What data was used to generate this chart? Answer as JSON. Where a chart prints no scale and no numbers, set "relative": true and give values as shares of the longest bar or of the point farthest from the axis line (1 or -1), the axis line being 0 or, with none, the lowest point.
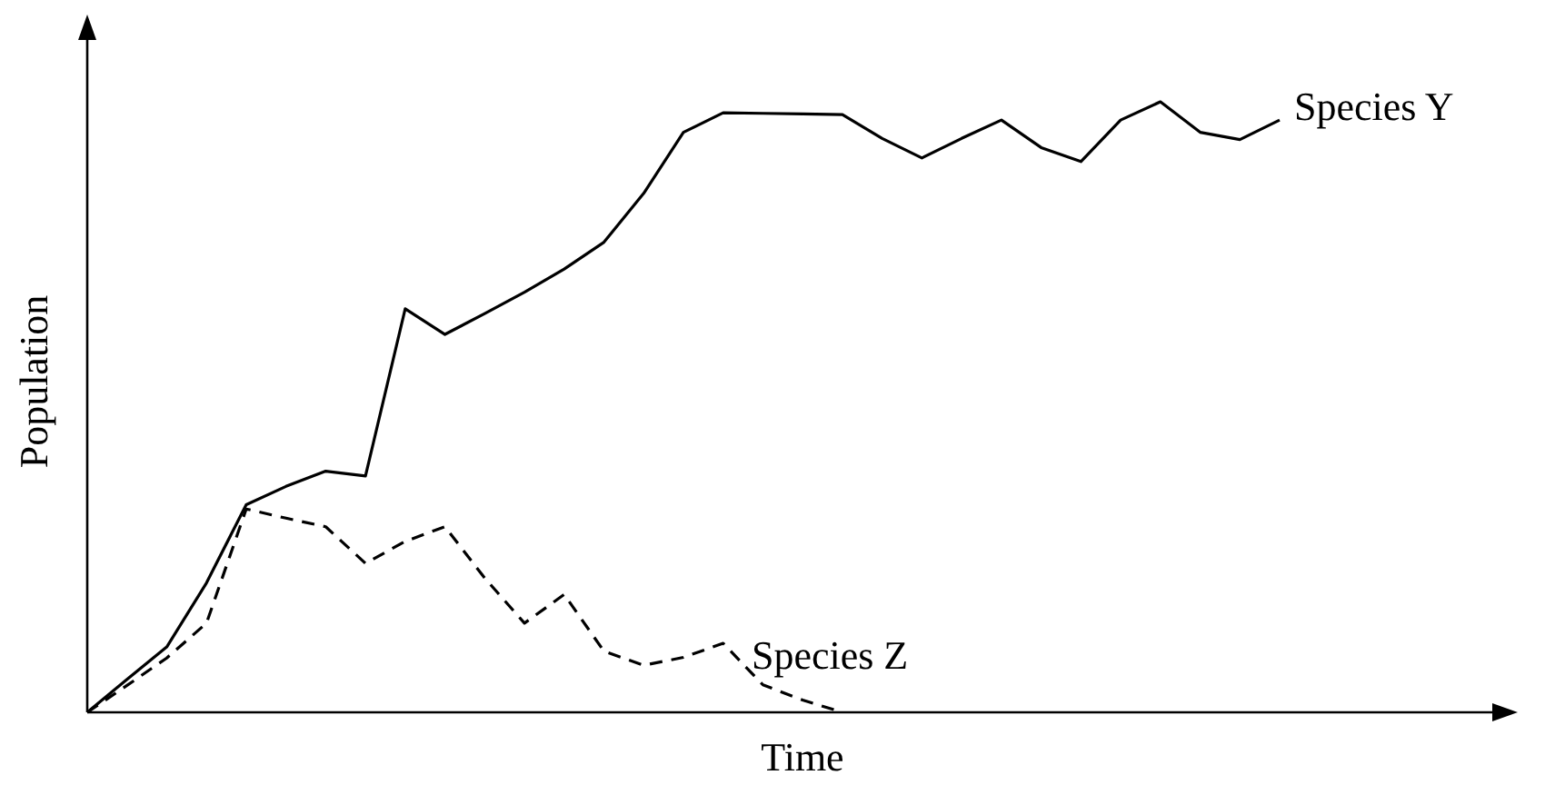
{
  "chart_data": {
    "type": "line",
    "relative": true,
    "xlabel": "Time",
    "ylabel": "Population",
    "marker": "none",
    "categories": [
      null,
      null,
      null,
      null,
      null,
      null,
      null,
      null,
      null,
      null,
      null,
      null,
      null,
      null,
      null,
      null,
      null,
      null,
      null,
      null,
      null,
      null,
      null,
      null,
      null,
      null,
      null,
      null,
      null,
      null,
      null
    ],
    "series": [
      {
        "name": "Species Y",
        "color": "#000000",
        "line_style": "solid",
        "values": [
          0,
          0.054,
          0.107,
          0.212,
          0.34,
          0.37,
          0.395,
          0.387,
          0.661,
          0.619,
          0.653,
          0.688,
          0.726,
          0.77,
          0.85,
          0.95,
          0.982,
          0.981,
          0.98,
          0.979,
          0.94,
          0.908,
          0.94,
          0.97,
          0.925,
          0.902,
          0.97,
          1,
          0.95,
          0.938,
          0.97
        ]
      },
      {
        "name": "Species Z",
        "color": "#000000",
        "line_style": "dashed",
        "values": [
          0,
          0.044,
          0.089,
          0.146,
          0.333,
          0.318,
          0.304,
          0.244,
          0.28,
          0.304,
          0.22,
          0.146,
          0.193,
          0.1,
          0.077,
          0.09,
          0.113,
          0.045,
          0.02,
          0,
          null,
          null,
          null,
          null,
          null,
          null,
          null,
          null,
          null,
          null,
          null
        ]
      }
    ]
  }
}
